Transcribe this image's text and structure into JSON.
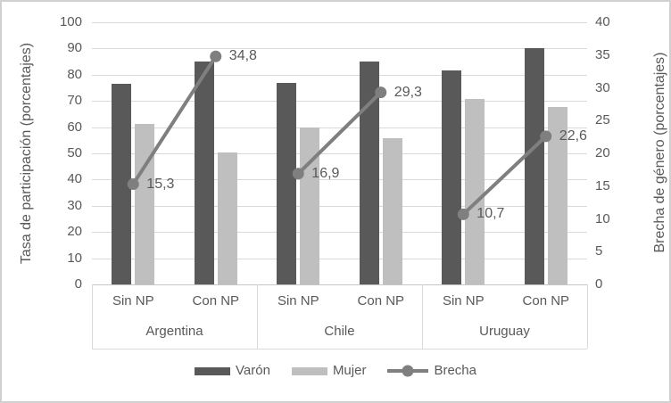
{
  "chart_data": {
    "type": "bar",
    "subtype": "grouped-bars-with-line-overlay",
    "groups": [
      "Argentina",
      "Chile",
      "Uruguay"
    ],
    "subcategories": [
      "Sin NP",
      "Con NP"
    ],
    "categories": [
      "Argentina Sin NP",
      "Argentina Con NP",
      "Chile Sin NP",
      "Chile Con NP",
      "Uruguay Sin NP",
      "Uruguay Con NP"
    ],
    "series": [
      {
        "name": "Varón",
        "type": "bar",
        "axis": "left",
        "color": "#595959",
        "values": [
          76.5,
          85.0,
          76.8,
          85.2,
          81.5,
          90.2
        ]
      },
      {
        "name": "Mujer",
        "type": "bar",
        "axis": "left",
        "color": "#bfbfbf",
        "values": [
          61.2,
          50.2,
          59.9,
          55.9,
          70.8,
          67.6
        ]
      },
      {
        "name": "Brecha",
        "type": "line",
        "axis": "right",
        "color": "#7f7f7f",
        "values": [
          15.3,
          34.8,
          16.9,
          29.3,
          10.7,
          22.6
        ],
        "data_labels": [
          "15,3",
          "34,8",
          "16,9",
          "29,3",
          "10,7",
          "22,6"
        ],
        "connect": "within-group-only"
      }
    ],
    "left_axis": {
      "title": "Tasa de participación (porcentajes)",
      "min": 0,
      "max": 100,
      "step": 10,
      "ticks": [
        "0",
        "10",
        "20",
        "30",
        "40",
        "50",
        "60",
        "70",
        "80",
        "90",
        "100"
      ]
    },
    "right_axis": {
      "title": "Brecha de género (porcentajes)",
      "min": 0,
      "max": 40,
      "step": 5,
      "ticks": [
        "0",
        "5",
        "10",
        "15",
        "20",
        "25",
        "30",
        "35",
        "40"
      ]
    },
    "legend": {
      "position": "bottom",
      "entries": [
        "Varón",
        "Mujer",
        "Brecha"
      ]
    },
    "grid": "horizontal",
    "colors": {
      "text": "#595959",
      "gridline": "#d9d9d9",
      "axis_line": "#c6c6c6",
      "frame": "#d0d0d0",
      "bar_varon": "#595959",
      "bar_mujer": "#bfbfbf",
      "line_brecha": "#7f7f7f"
    }
  }
}
